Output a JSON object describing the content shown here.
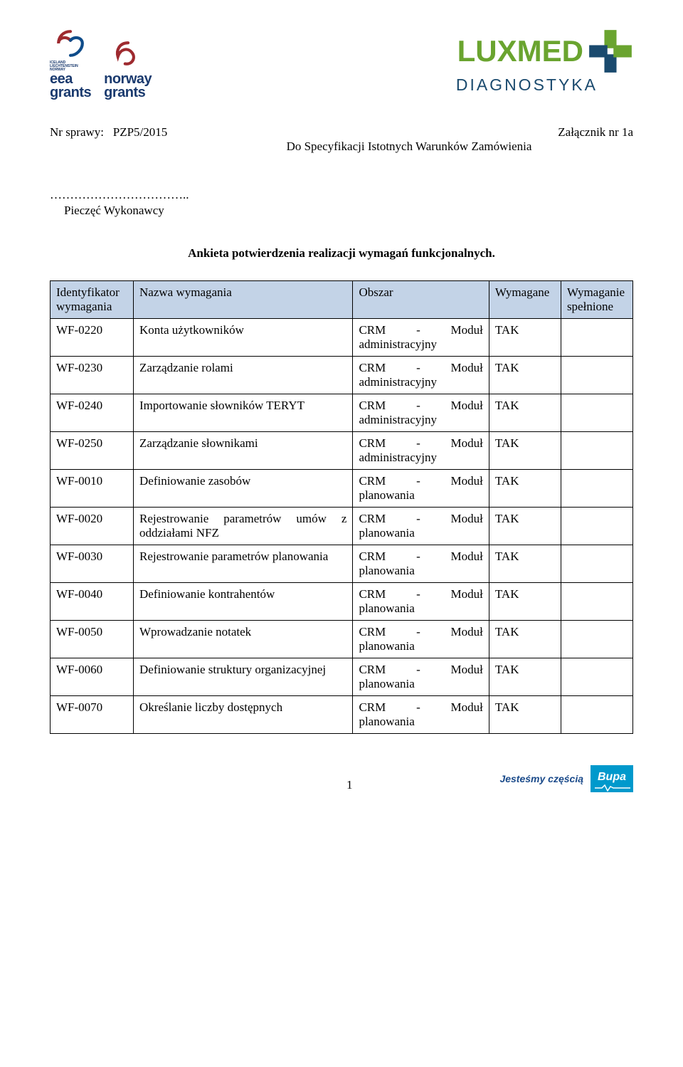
{
  "logos": {
    "eea_small_lines": "ICELAND\nLIECHTENSTEIN\nNORWAY",
    "eea_text": "eea\ngrants",
    "norway_text": "norway\ngrants",
    "eea_swirl_outer": "#9e2a2f",
    "eea_swirl_inner": "#0f4c8a",
    "norway_swirl": "#9e2a2f",
    "grants_text_color": "#1a3a6e",
    "luxmed_main": "LUXMED",
    "luxmed_sub": "DIAGNOSTYKA",
    "luxmed_green": "#6aa42f",
    "luxmed_blue": "#1a4a6e",
    "luxmed_cross_blue": "#1a4a6e"
  },
  "meta": {
    "case_no_label": "Nr sprawy:",
    "case_no": "PZP5/2015",
    "attachment": "Załącznik nr 1a",
    "spec_line": "Do Specyfikacji Istotnych Warunków Zamówienia",
    "dots": "……………………………..",
    "stamp": "Pieczęć Wykonawcy",
    "title": "Ankieta potwierdzenia realizacji wymagań funkcjonalnych."
  },
  "table": {
    "headers": {
      "id": "Identyfikator wymagania",
      "name": "Nazwa wymagania",
      "area": "Obszar",
      "required": "Wymagane",
      "fulfilled": "Wymaganie spełnione"
    },
    "header_bg": "#c3d3e7",
    "rows": [
      {
        "id": "WF-0220",
        "name": "Konta użytkowników",
        "area": "CRM - Moduł administracyjny",
        "req": "TAK",
        "fulf": ""
      },
      {
        "id": "WF-0230",
        "name": "Zarządzanie rolami",
        "area": "CRM - Moduł administracyjny",
        "req": "TAK",
        "fulf": ""
      },
      {
        "id": "WF-0240",
        "name": "Importowanie słowników TERYT",
        "area": "CRM - Moduł administracyjny",
        "req": "TAK",
        "fulf": ""
      },
      {
        "id": "WF-0250",
        "name": "Zarządzanie słownikami",
        "area": "CRM - Moduł administracyjny",
        "req": "TAK",
        "fulf": ""
      },
      {
        "id": "WF-0010",
        "name": "Definiowanie zasobów",
        "area": "CRM - Moduł planowania",
        "req": "TAK",
        "fulf": ""
      },
      {
        "id": "WF-0020",
        "name": "Rejestrowanie parametrów umów z oddziałami NFZ",
        "area": "CRM - Moduł planowania",
        "req": "TAK",
        "fulf": ""
      },
      {
        "id": "WF-0030",
        "name": "Rejestrowanie parametrów planowania",
        "area": "CRM - Moduł planowania",
        "req": "TAK",
        "fulf": ""
      },
      {
        "id": "WF-0040",
        "name": "Definiowanie kontrahentów",
        "area": "CRM - Moduł planowania",
        "req": "TAK",
        "fulf": ""
      },
      {
        "id": "WF-0050",
        "name": "Wprowadzanie notatek",
        "area": "CRM - Moduł planowania",
        "req": "TAK",
        "fulf": ""
      },
      {
        "id": "WF-0060",
        "name": "Definiowanie struktury organizacyjnej",
        "area": "CRM - Moduł planowania",
        "req": "TAK",
        "fulf": ""
      },
      {
        "id": "WF-0070",
        "name": "Określanie liczby dostępnych",
        "area": "CRM - Moduł planowania",
        "req": "TAK",
        "fulf": ""
      }
    ],
    "name_justify_rows": [
      "WF-0020",
      "WF-0030",
      "WF-0060"
    ]
  },
  "footer": {
    "page": "1",
    "bupa_text": "Jesteśmy częścią",
    "bupa_mark": "Bupa",
    "bupa_bg": "#0099cc",
    "bupa_text_color": "#1a4a8a"
  }
}
